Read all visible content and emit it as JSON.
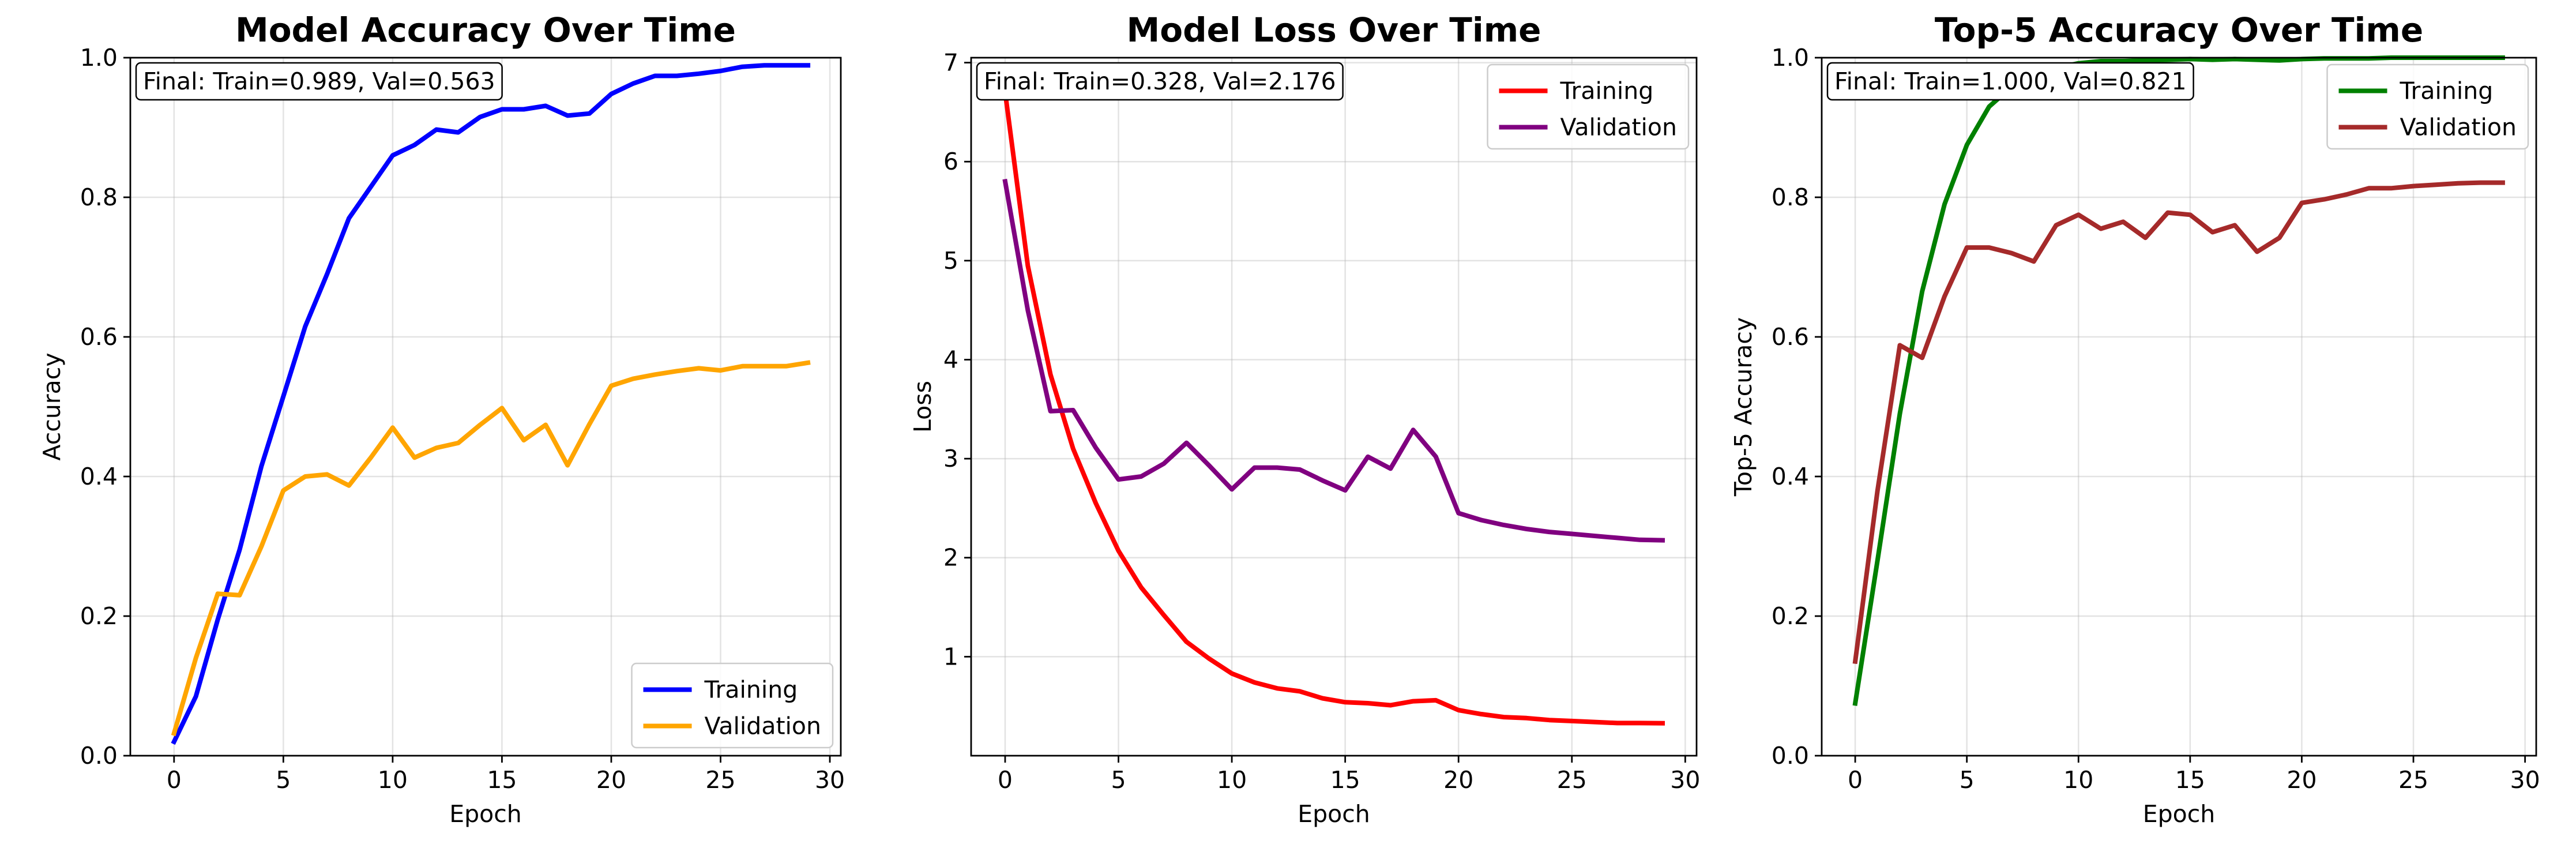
{
  "chart_data": [
    {
      "type": "line",
      "title": "Model Accuracy Over Time",
      "xlabel": "Epoch",
      "ylabel": "Accuracy",
      "xlim": [
        -2,
        30.5
      ],
      "ylim": [
        0,
        1
      ],
      "xticks": [
        0,
        5,
        10,
        15,
        20,
        25,
        30
      ],
      "yticks": [
        0.0,
        0.2,
        0.4,
        0.6,
        0.8,
        1.0
      ],
      "ytick_format": 1,
      "grid": true,
      "legend_position": "lower-right",
      "annotation": "Final: Train=0.989, Val=0.563",
      "x": [
        0,
        1,
        2,
        3,
        4,
        5,
        6,
        7,
        8,
        9,
        10,
        11,
        12,
        13,
        14,
        15,
        16,
        17,
        18,
        19,
        20,
        21,
        22,
        23,
        24,
        25,
        26,
        27,
        28,
        29
      ],
      "series": [
        {
          "name": "Training",
          "color": "#0000ff",
          "values": [
            0.02,
            0.085,
            0.195,
            0.295,
            0.415,
            0.515,
            0.615,
            0.69,
            0.77,
            0.815,
            0.86,
            0.875,
            0.897,
            0.893,
            0.915,
            0.926,
            0.926,
            0.931,
            0.917,
            0.92,
            0.948,
            0.963,
            0.974,
            0.974,
            0.977,
            0.981,
            0.987,
            0.989,
            0.989,
            0.989
          ]
        },
        {
          "name": "Validation",
          "color": "#ffa500",
          "values": [
            0.032,
            0.14,
            0.232,
            0.23,
            0.3,
            0.38,
            0.4,
            0.403,
            0.387,
            0.427,
            0.47,
            0.427,
            0.441,
            0.448,
            0.474,
            0.498,
            0.452,
            0.474,
            0.416,
            0.475,
            0.53,
            0.54,
            0.546,
            0.551,
            0.555,
            0.552,
            0.558,
            0.558,
            0.558,
            0.563
          ]
        }
      ]
    },
    {
      "type": "line",
      "title": "Model Loss Over Time",
      "xlabel": "Epoch",
      "ylabel": "Loss",
      "xlim": [
        -1.5,
        30.5
      ],
      "ylim": [
        0,
        7.05
      ],
      "xticks": [
        0,
        5,
        10,
        15,
        20,
        25,
        30
      ],
      "yticks": [
        1,
        2,
        3,
        4,
        5,
        6,
        7
      ],
      "ytick_format": 0,
      "grid": true,
      "legend_position": "upper-right",
      "annotation": "Final: Train=0.328, Val=2.176",
      "x": [
        0,
        1,
        2,
        3,
        4,
        5,
        6,
        7,
        8,
        9,
        10,
        11,
        12,
        13,
        14,
        15,
        16,
        17,
        18,
        19,
        20,
        21,
        22,
        23,
        24,
        25,
        26,
        27,
        28,
        29
      ],
      "series": [
        {
          "name": "Training",
          "color": "#ff0000",
          "values": [
            6.7,
            4.95,
            3.85,
            3.1,
            2.55,
            2.07,
            1.7,
            1.42,
            1.15,
            0.98,
            0.83,
            0.74,
            0.68,
            0.65,
            0.58,
            0.54,
            0.53,
            0.51,
            0.55,
            0.56,
            0.46,
            0.42,
            0.39,
            0.38,
            0.36,
            0.35,
            0.34,
            0.33,
            0.33,
            0.328
          ]
        },
        {
          "name": "Validation",
          "color": "#800080",
          "values": [
            5.8,
            4.5,
            3.48,
            3.49,
            3.11,
            2.79,
            2.82,
            2.95,
            3.16,
            2.93,
            2.69,
            2.91,
            2.91,
            2.89,
            2.78,
            2.68,
            3.02,
            2.9,
            3.29,
            3.02,
            2.45,
            2.38,
            2.33,
            2.29,
            2.26,
            2.24,
            2.22,
            2.2,
            2.18,
            2.176
          ]
        }
      ]
    },
    {
      "type": "line",
      "title": "Top-5 Accuracy Over Time",
      "xlabel": "Epoch",
      "ylabel": "Top-5 Accuracy",
      "xlim": [
        -1.5,
        30.5
      ],
      "ylim": [
        0,
        1
      ],
      "xticks": [
        0,
        5,
        10,
        15,
        20,
        25,
        30
      ],
      "yticks": [
        0.0,
        0.2,
        0.4,
        0.6,
        0.8,
        1.0
      ],
      "ytick_format": 1,
      "grid": true,
      "legend_position": "upper-right",
      "annotation": "Final: Train=1.000, Val=0.821",
      "x": [
        0,
        1,
        2,
        3,
        4,
        5,
        6,
        7,
        8,
        9,
        10,
        11,
        12,
        13,
        14,
        15,
        16,
        17,
        18,
        19,
        20,
        21,
        22,
        23,
        24,
        25,
        26,
        27,
        28,
        29
      ],
      "series": [
        {
          "name": "Training",
          "color": "#008000",
          "values": [
            0.075,
            0.28,
            0.49,
            0.665,
            0.79,
            0.875,
            0.93,
            0.958,
            0.975,
            0.985,
            0.992,
            0.995,
            0.995,
            0.996,
            0.997,
            0.998,
            0.997,
            0.998,
            0.997,
            0.996,
            0.998,
            0.999,
            0.999,
            0.999,
            1.0,
            1.0,
            1.0,
            1.0,
            1.0,
            1.0
          ]
        },
        {
          "name": "Validation",
          "color": "#a52a2a",
          "values": [
            0.135,
            0.38,
            0.588,
            0.57,
            0.658,
            0.728,
            0.728,
            0.72,
            0.708,
            0.76,
            0.775,
            0.755,
            0.765,
            0.742,
            0.778,
            0.775,
            0.75,
            0.76,
            0.722,
            0.742,
            0.792,
            0.797,
            0.804,
            0.813,
            0.813,
            0.816,
            0.818,
            0.82,
            0.821,
            0.821
          ]
        }
      ]
    }
  ]
}
